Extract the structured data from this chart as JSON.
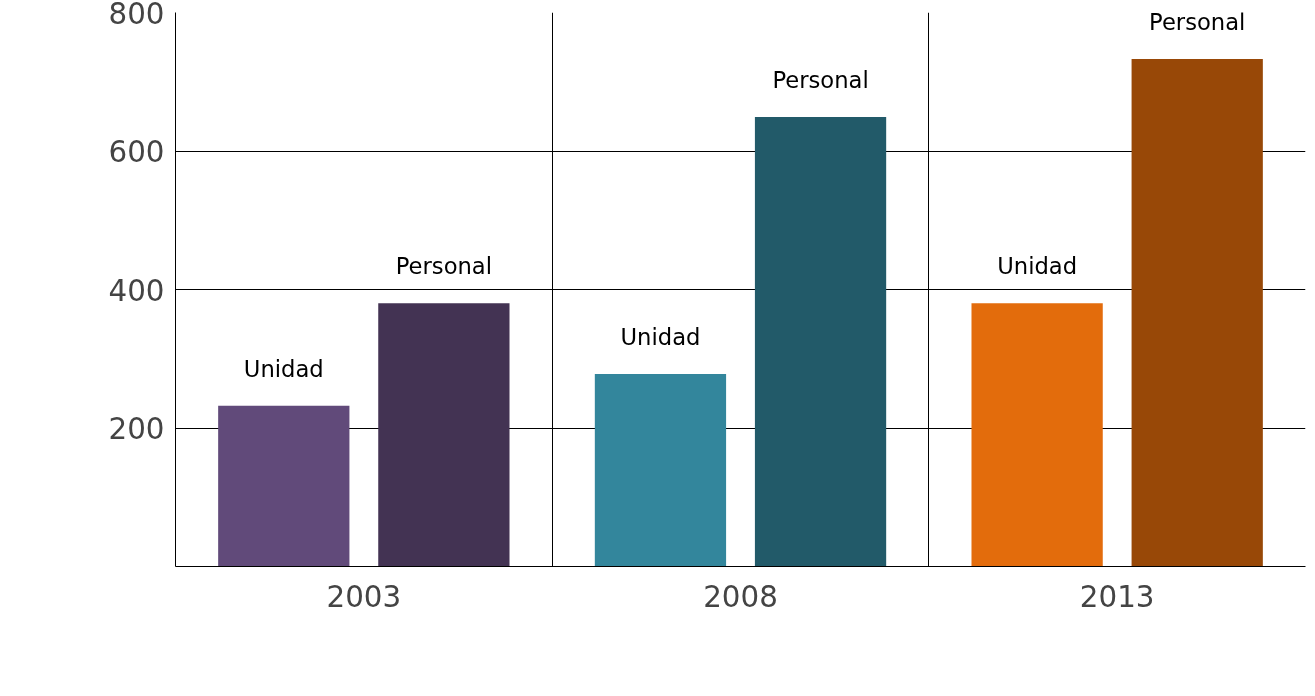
{
  "chart_data": {
    "type": "bar",
    "categories": [
      "2003",
      "2008",
      "2013"
    ],
    "series": [
      {
        "name": "Unidad",
        "colors": [
          "#614a7a",
          "#33869c",
          "#e36c0c"
        ],
        "values": [
          232,
          278,
          380
        ]
      },
      {
        "name": "Personal",
        "colors": [
          "#433353",
          "#225a69",
          "#984807"
        ],
        "values": [
          380,
          649,
          733
        ]
      }
    ],
    "ylim": [
      0,
      800
    ],
    "yticks": [
      200,
      400,
      600,
      800
    ],
    "grid": true
  }
}
